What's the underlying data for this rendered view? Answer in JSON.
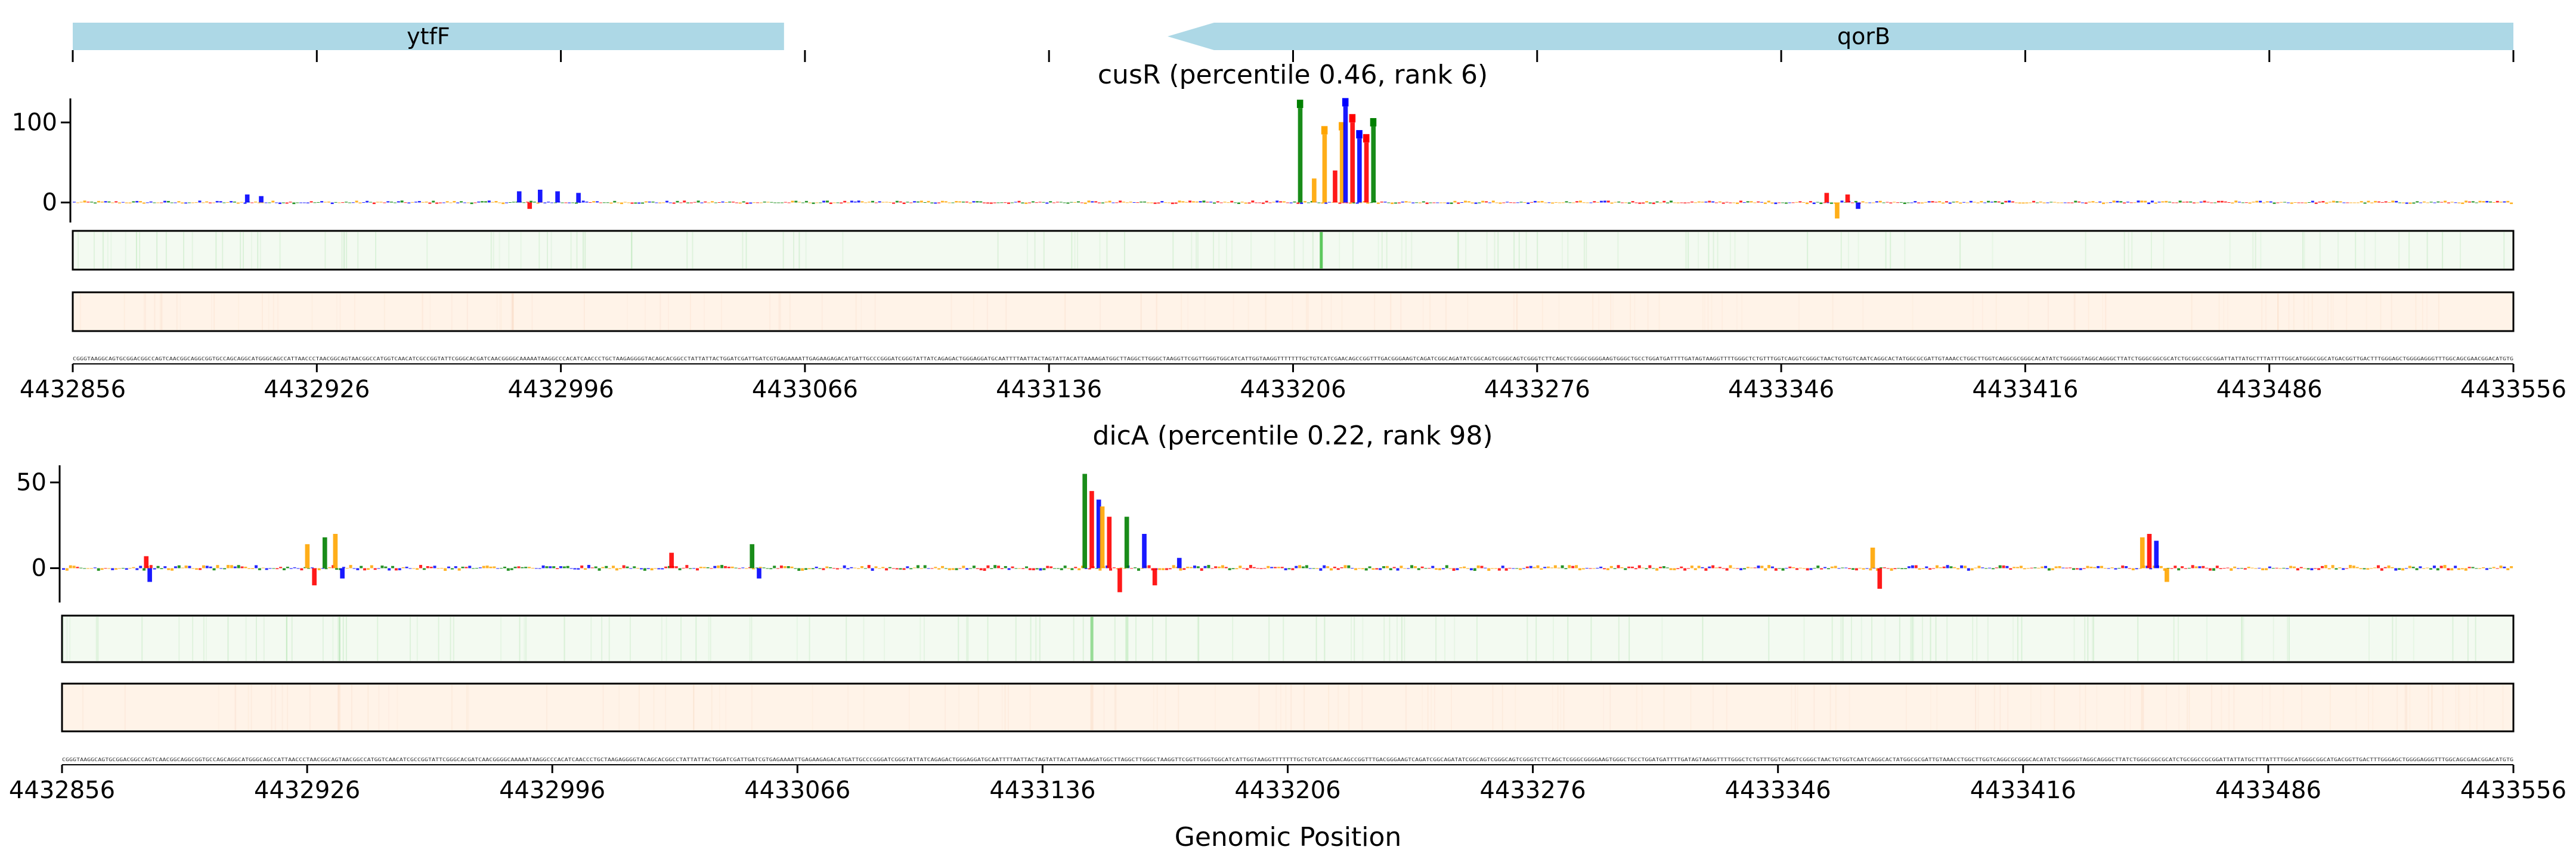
{
  "colors": {
    "gene": "#add8e6",
    "A": "#008000",
    "C": "#0000ff",
    "G": "#ffa500",
    "T": "#ff0000",
    "track1_bg": "#f3faf1",
    "track1_hit": "#4cc24c",
    "track2_bg": "#fff3e8",
    "track2_hit": "#f3c4a4"
  },
  "genes": [
    {
      "name": "ytfF",
      "start": 4432856,
      "end": 4433060,
      "strand": "+"
    },
    {
      "name": "qorB",
      "start": 4433170,
      "end": 4433556,
      "strand": "-"
    }
  ],
  "panels": [
    {
      "title": "cusR (percentile 0.46, rank 6)",
      "yticks": [
        0,
        100
      ],
      "ylim": [
        -25,
        130
      ]
    },
    {
      "title": "dicA (percentile 0.22, rank 98)",
      "yticks": [
        0,
        50
      ],
      "ylim": [
        -20,
        60
      ]
    }
  ],
  "x_axis": {
    "label": "Genomic Position",
    "start": 4432856,
    "end": 4433556,
    "ticks": [
      "4432856",
      "4432926",
      "4432996",
      "4433066",
      "4433136",
      "4433206",
      "4433276",
      "4433346",
      "4433416",
      "4433486",
      "4433556"
    ]
  },
  "sequence": "CGGGTAAGGCAGTGCGGACGGCCAGTCAACGGCAGGCGGTGCCAGCAGGCATGGGCAGCCATTAACCCTAACGGCAGTAACGGCCATGGTCAACATCGCCGGTATTCGGGCACGATCAACGGGGCAAAAATAAGGCCCACATCAACCCTGCTAAGAGGGGTACAGCACGGCCTATTATTACTGGATCGATTGATCGTGAGAAAATTGAGAAGAGACATGATTGCCCGGGATCGGGTATTATCAGAGACTGGGAGGATGCAATTTTAATTACTAGTATTACATTAAAAGATGGCTTAGGCTTGGGCTAAGGTTCGGTTGGGTGGCATCATTGGTAAGGTTTTTTTGCTGTCATCGAACAGCCGGTTTGACGGGAAGTCAGATCGGCAGATATCGGCAGTCGGGCAGTCGGGTCTTCAGCTCGGGCGGGGAAGTGGGCTGCCTGGATGATTTTGATAGTAAGGTTTTGGGCTCTGTTTGGTCAGGTCGGGCTAACTGTGGTCAATCAGGCACTATGGCGCGATTGTAAACCTGGCTTGGTCAGGCGCGGGCACATATCTGGGGGTAGGCAGGGCTTATCTGGGCGGCGCATCTGCGGCCGCGGATTATTATGCTTTATTTTGGCATGGGCGGCATGACGGTTGACTTTGGGAGCTGGGGAGGGTTTGGCAGCGAACGGACATGTG",
  "chart_data": [
    {
      "type": "sequence_logo",
      "title": "cusR (percentile 0.46, rank 6)",
      "ylabel": "",
      "xlabel": "Genomic Position",
      "ylim": [
        -25,
        130
      ],
      "yticks": [
        0,
        100
      ],
      "xlim": [
        4432856,
        4433556
      ],
      "peaks": [
        {
          "pos": 4432906,
          "height": 10,
          "base": "C"
        },
        {
          "pos": 4432910,
          "height": 8,
          "base": "C"
        },
        {
          "pos": 4432984,
          "height": 14,
          "base": "C"
        },
        {
          "pos": 4432987,
          "height": -8,
          "base": "T"
        },
        {
          "pos": 4432990,
          "height": 16,
          "base": "C"
        },
        {
          "pos": 4432995,
          "height": 14,
          "base": "C"
        },
        {
          "pos": 4433001,
          "height": 12,
          "base": "C"
        },
        {
          "pos": 4433208,
          "height": 118,
          "base": "A"
        },
        {
          "pos": 4433212,
          "height": 30,
          "base": "G"
        },
        {
          "pos": 4433215,
          "height": 85,
          "base": "G"
        },
        {
          "pos": 4433218,
          "height": 40,
          "base": "T"
        },
        {
          "pos": 4433220,
          "height": 90,
          "base": "G"
        },
        {
          "pos": 4433221,
          "height": 120,
          "base": "C"
        },
        {
          "pos": 4433223,
          "height": 100,
          "base": "T"
        },
        {
          "pos": 4433225,
          "height": 80,
          "base": "C"
        },
        {
          "pos": 4433227,
          "height": 75,
          "base": "T"
        },
        {
          "pos": 4433229,
          "height": 95,
          "base": "A"
        },
        {
          "pos": 4433359,
          "height": 12,
          "base": "T"
        },
        {
          "pos": 4433362,
          "height": -20,
          "base": "G"
        },
        {
          "pos": 4433365,
          "height": 10,
          "base": "T"
        },
        {
          "pos": 4433368,
          "height": -8,
          "base": "C"
        }
      ]
    },
    {
      "type": "sequence_logo",
      "title": "dicA (percentile 0.22, rank 98)",
      "ylabel": "",
      "xlabel": "Genomic Position",
      "ylim": [
        -20,
        60
      ],
      "yticks": [
        0,
        50
      ],
      "xlim": [
        4432856,
        4433556
      ],
      "peaks": [
        {
          "pos": 4432880,
          "height": 7,
          "base": "T"
        },
        {
          "pos": 4432881,
          "height": -8,
          "base": "C"
        },
        {
          "pos": 4432926,
          "height": 14,
          "base": "G"
        },
        {
          "pos": 4432928,
          "height": -10,
          "base": "T"
        },
        {
          "pos": 4432931,
          "height": 18,
          "base": "A"
        },
        {
          "pos": 4432934,
          "height": 20,
          "base": "G"
        },
        {
          "pos": 4432936,
          "height": -6,
          "base": "C"
        },
        {
          "pos": 4433030,
          "height": 9,
          "base": "T"
        },
        {
          "pos": 4433053,
          "height": 14,
          "base": "A"
        },
        {
          "pos": 4433055,
          "height": -6,
          "base": "C"
        },
        {
          "pos": 4433148,
          "height": 55,
          "base": "A"
        },
        {
          "pos": 4433150,
          "height": 45,
          "base": "T"
        },
        {
          "pos": 4433152,
          "height": 40,
          "base": "C"
        },
        {
          "pos": 4433153,
          "height": 36,
          "base": "G"
        },
        {
          "pos": 4433155,
          "height": 30,
          "base": "T"
        },
        {
          "pos": 4433158,
          "height": -14,
          "base": "T"
        },
        {
          "pos": 4433160,
          "height": 30,
          "base": "A"
        },
        {
          "pos": 4433165,
          "height": 20,
          "base": "C"
        },
        {
          "pos": 4433168,
          "height": -10,
          "base": "T"
        },
        {
          "pos": 4433175,
          "height": 6,
          "base": "C"
        },
        {
          "pos": 4433373,
          "height": 12,
          "base": "G"
        },
        {
          "pos": 4433375,
          "height": -12,
          "base": "T"
        },
        {
          "pos": 4433450,
          "height": 18,
          "base": "G"
        },
        {
          "pos": 4433452,
          "height": 20,
          "base": "T"
        },
        {
          "pos": 4433454,
          "height": 16,
          "base": "C"
        },
        {
          "pos": 4433457,
          "height": -8,
          "base": "G"
        }
      ]
    }
  ]
}
